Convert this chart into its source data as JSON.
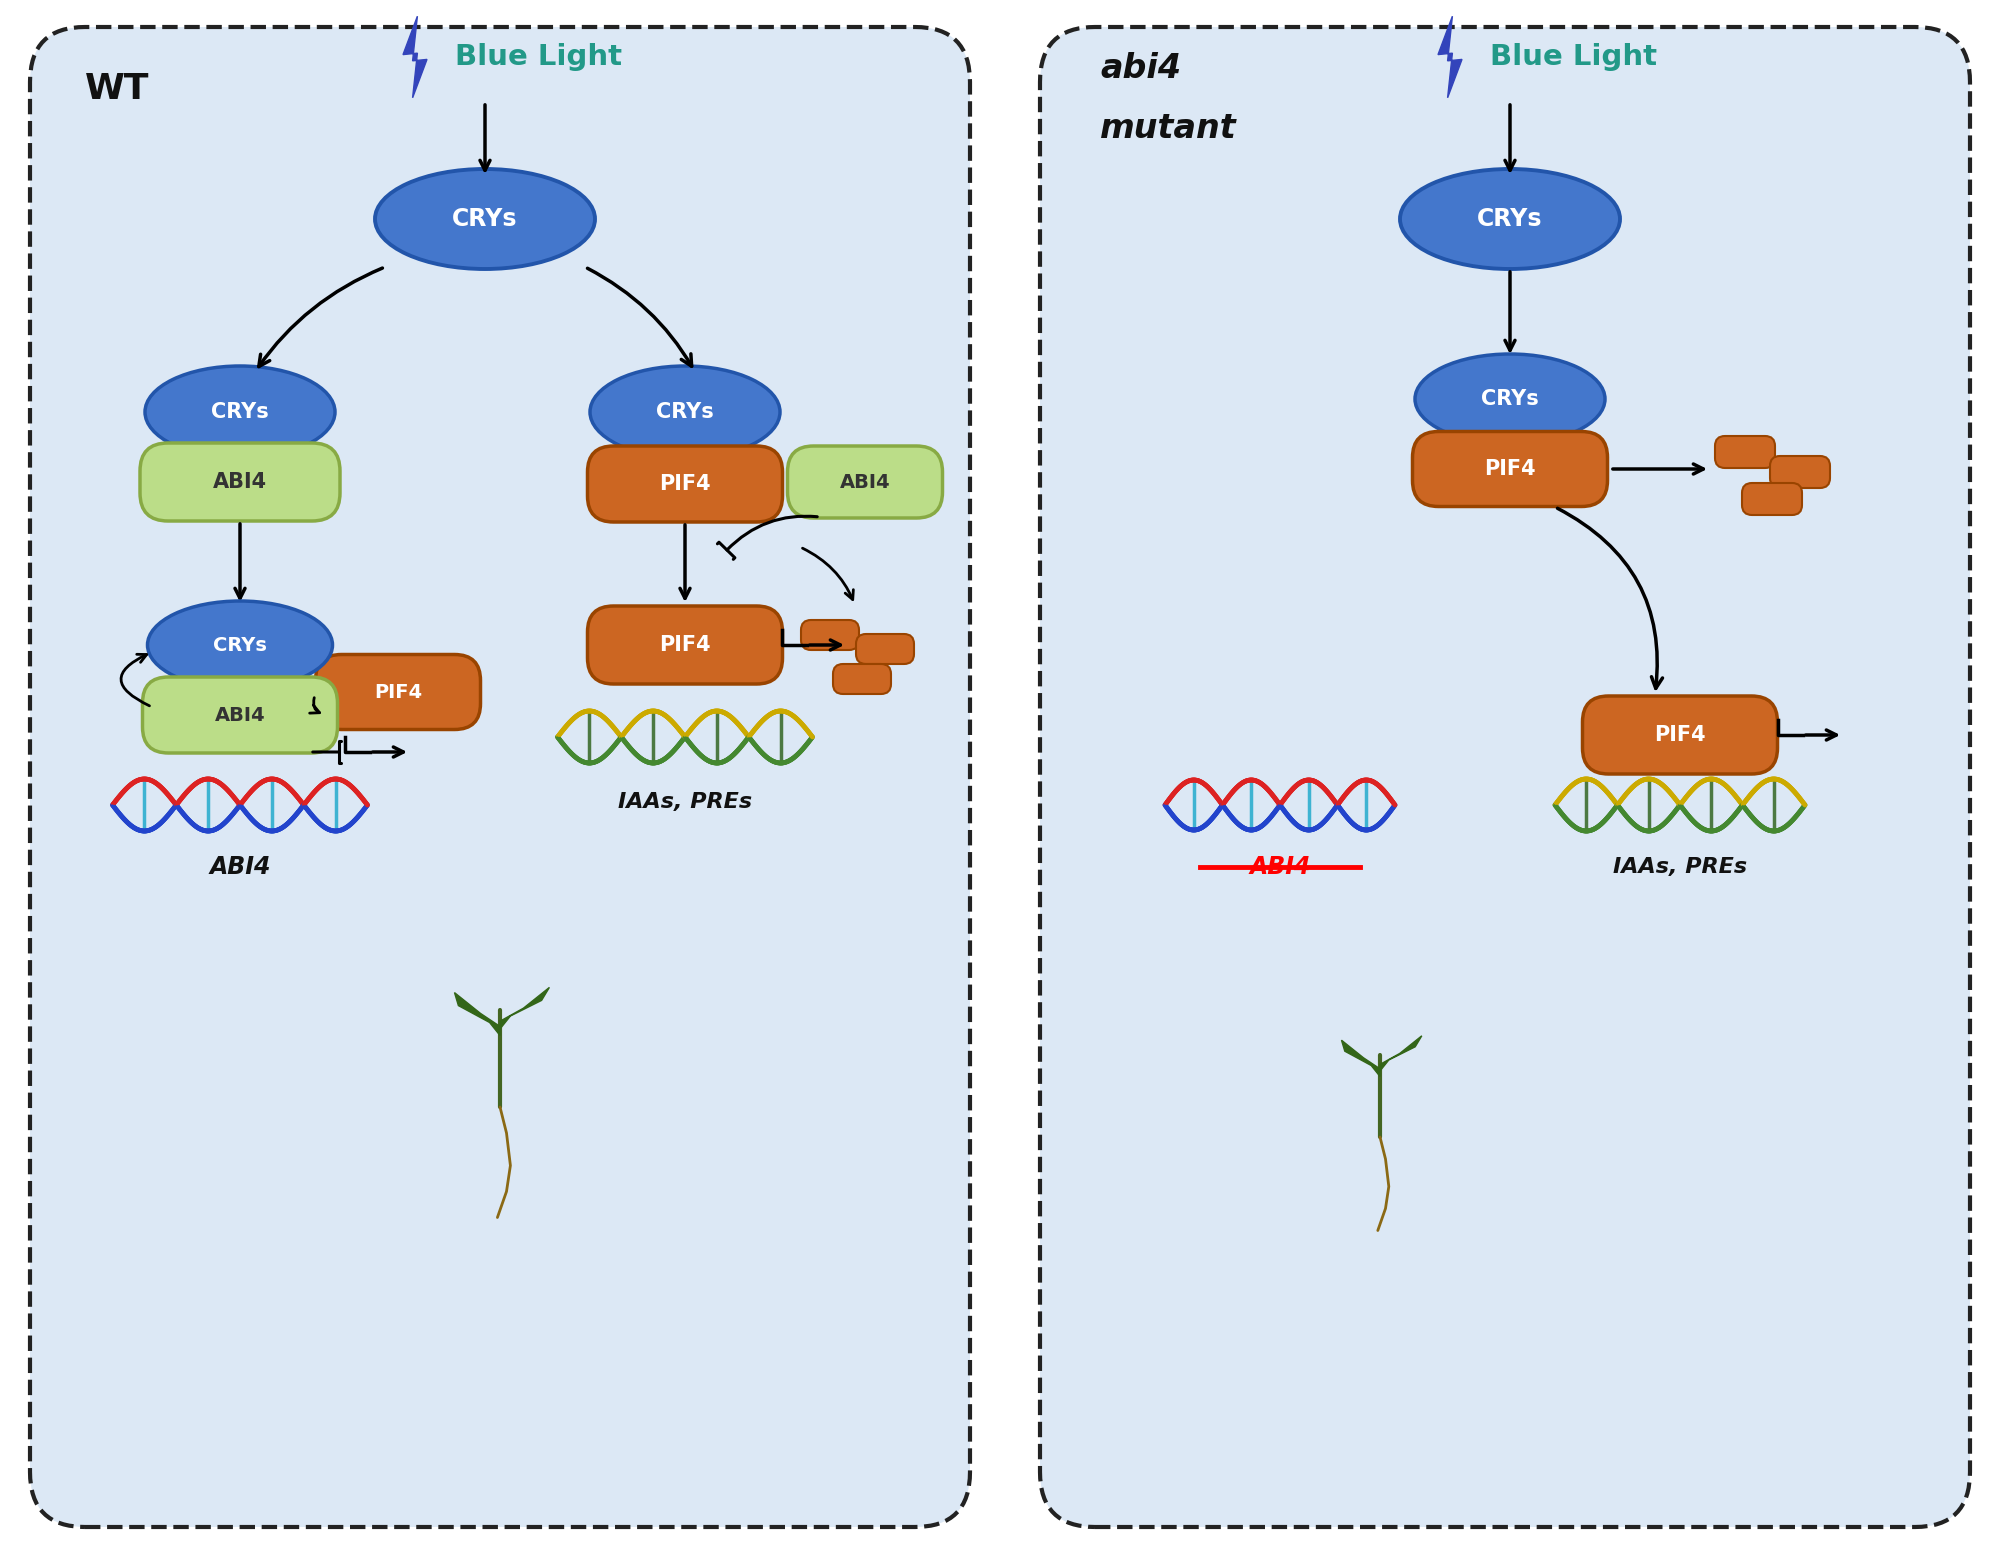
{
  "bg_color": "#ffffff",
  "panel_bg": "#dce8f5",
  "border_color": "#222222",
  "blue_color": "#4477cc",
  "blue_edge": "#2255aa",
  "green_color": "#bbdd88",
  "green_edge": "#88aa44",
  "orange_color": "#cc6622",
  "orange_edge": "#994400",
  "teal_color": "#229988",
  "lightning_color": "#3344bb",
  "text_black": "#111111",
  "panel1_label": "WT",
  "panel2_label_line1": "abi4",
  "panel2_label_line2": "mutant",
  "blue_light_label": "Blue Light",
  "dna1_c1": "#dd2222",
  "dna1_c2": "#2244cc",
  "dna1_c3": "#22aacc",
  "dna2_c1": "#ccaa00",
  "dna2_c2": "#448830",
  "dna2_c3": "#336622",
  "seedling_stem": "#446622",
  "seedling_leaf": "#336618",
  "seedling_root": "#8B6914"
}
